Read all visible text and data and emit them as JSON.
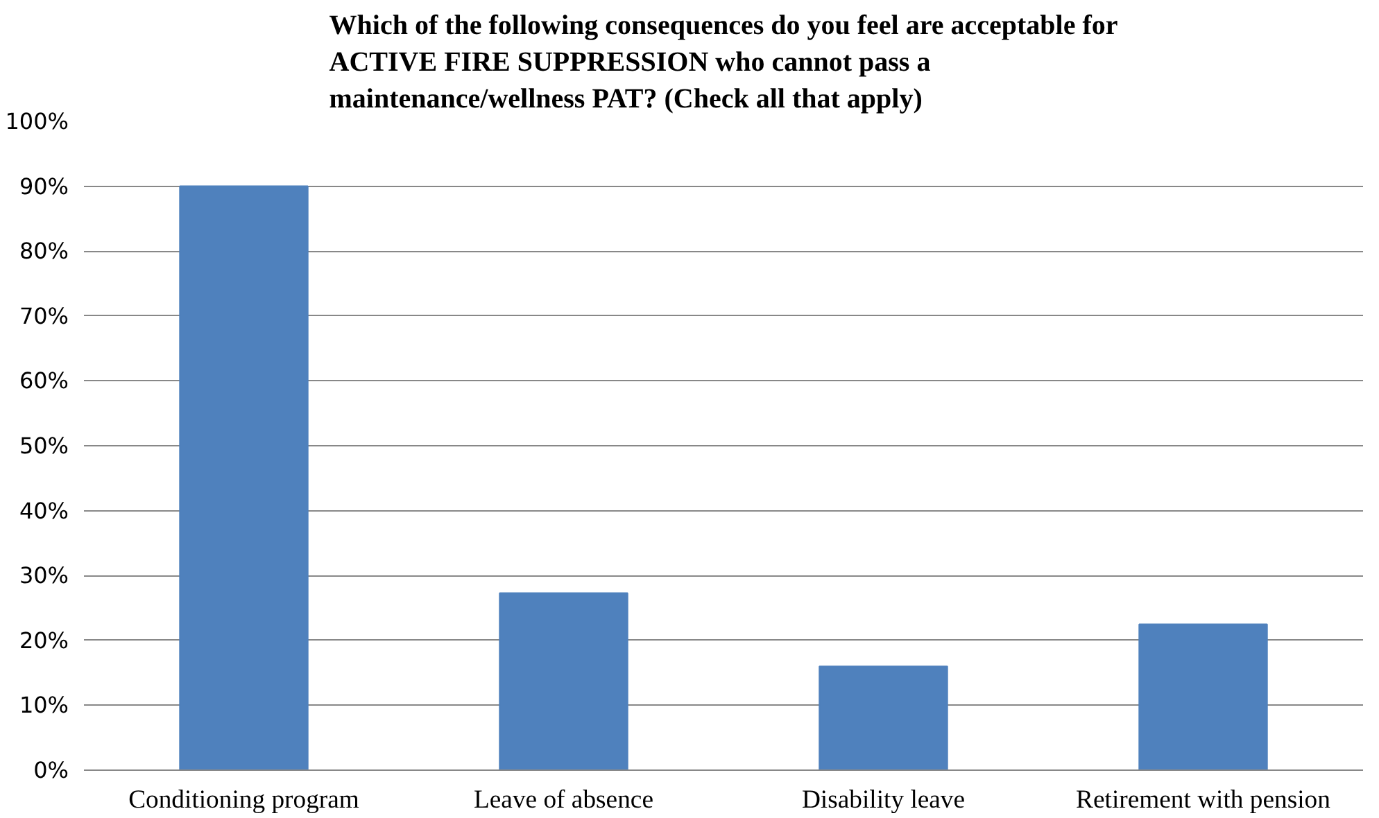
{
  "chart_data": {
    "type": "bar",
    "title": "Which of the following consequences do you feel are acceptable for\nACTIVE FIRE SUPPRESSION who cannot pass a\nmaintenance/wellness PAT? (Check all that apply)",
    "categories": [
      "Conditioning program",
      "Leave of absence",
      "Disability leave",
      "Retirement with pension"
    ],
    "values": [
      90,
      27.3,
      16,
      22.5
    ],
    "color": "#4f81bd",
    "ylim": [
      0,
      100
    ],
    "yticks": [
      {
        "value": 0,
        "label": "0%"
      },
      {
        "value": 10,
        "label": "10%"
      },
      {
        "value": 20,
        "label": "20%"
      },
      {
        "value": 30,
        "label": "30%"
      },
      {
        "value": 40,
        "label": "40%"
      },
      {
        "value": 50,
        "label": "50%"
      },
      {
        "value": 60,
        "label": "60%"
      },
      {
        "value": 70,
        "label": "70%"
      },
      {
        "value": 80,
        "label": "80%"
      },
      {
        "value": 90,
        "label": "90%"
      },
      {
        "value": 100,
        "label": "100%"
      }
    ],
    "grid": "y"
  }
}
